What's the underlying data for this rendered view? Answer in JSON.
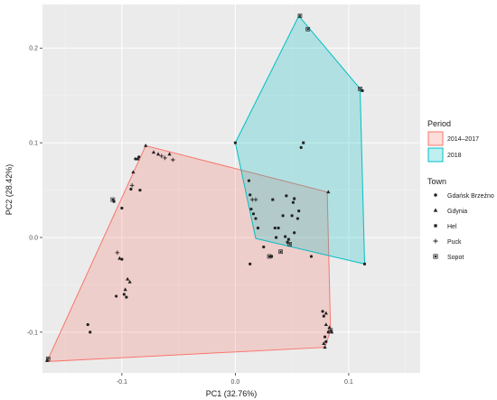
{
  "chart_data": {
    "type": "scatter",
    "title": "",
    "xlabel": "PC1 (32.76%)",
    "ylabel": "PC2 (28.42%)",
    "xlim": [
      -0.17,
      0.163
    ],
    "ylim": [
      -0.143,
      0.246
    ],
    "xticks": [
      -0.1,
      0.0,
      0.1
    ],
    "yticks": [
      -0.1,
      0.0,
      0.1,
      0.2
    ],
    "xtick_labels": [
      "-0.1",
      "0.0",
      "0.1"
    ],
    "ytick_labels": [
      "-0.1",
      "0.0",
      "0.1",
      "0.2"
    ],
    "grid": true,
    "panel_background": "#ebebeb",
    "legend_position": "right",
    "legends": {
      "period": {
        "title": "Period",
        "entries": [
          {
            "label": "2014–2017",
            "fill": "#f8766d",
            "border": "#f8766d"
          },
          {
            "label": "2018",
            "fill": "#00bfc4",
            "border": "#00bfc4"
          }
        ]
      },
      "town": {
        "title": "Town",
        "entries": [
          {
            "label": "Gdańsk Brzeźno",
            "shape": "circle"
          },
          {
            "label": "Gdynia",
            "shape": "triangle"
          },
          {
            "label": "Hel",
            "shape": "square"
          },
          {
            "label": "Puck",
            "shape": "plus"
          },
          {
            "label": "Sopot",
            "shape": "boxed-square"
          }
        ]
      }
    },
    "hulls": [
      {
        "name": "2014–2017",
        "color": "#f8766d",
        "vertices": [
          [
            -0.079,
            0.097
          ],
          [
            0.081,
            0.048
          ],
          [
            0.084,
            -0.098
          ],
          [
            0.079,
            -0.116
          ],
          [
            -0.166,
            -0.131
          ]
        ]
      },
      {
        "name": "2018",
        "color": "#00bfc4",
        "vertices": [
          [
            0.0,
            0.1
          ],
          [
            0.056,
            0.234
          ],
          [
            0.11,
            0.157
          ],
          [
            0.114,
            -0.028
          ],
          [
            0.018,
            -0.001
          ]
        ]
      }
    ],
    "points": [
      {
        "x": -0.166,
        "y": -0.13,
        "town": "Gdynia"
      },
      {
        "x": -0.165,
        "y": -0.128,
        "town": "Sopot"
      },
      {
        "x": -0.13,
        "y": -0.092,
        "town": "Gdańsk Brzeźno"
      },
      {
        "x": -0.128,
        "y": -0.1,
        "town": "Gdańsk Brzeźno"
      },
      {
        "x": -0.108,
        "y": 0.04,
        "town": "Sopot"
      },
      {
        "x": -0.107,
        "y": 0.038,
        "town": "Gdańsk Brzeźno"
      },
      {
        "x": -0.105,
        "y": -0.062,
        "town": "Gdańsk Brzeźno"
      },
      {
        "x": -0.104,
        "y": -0.016,
        "town": "Puck"
      },
      {
        "x": -0.102,
        "y": -0.022,
        "town": "Gdynia"
      },
      {
        "x": -0.1,
        "y": -0.023,
        "town": "Gdańsk Brzeźno"
      },
      {
        "x": -0.1,
        "y": 0.031,
        "town": "Gdańsk Brzeźno"
      },
      {
        "x": -0.098,
        "y": -0.06,
        "town": "Gdańsk Brzeźno"
      },
      {
        "x": -0.097,
        "y": -0.055,
        "town": "Gdynia"
      },
      {
        "x": -0.096,
        "y": -0.063,
        "town": "Gdańsk Brzeźno"
      },
      {
        "x": -0.095,
        "y": -0.044,
        "town": "Gdynia"
      },
      {
        "x": -0.093,
        "y": -0.047,
        "town": "Gdynia"
      },
      {
        "x": -0.092,
        "y": 0.051,
        "town": "Gdańsk Brzeźno"
      },
      {
        "x": -0.091,
        "y": 0.055,
        "town": "Puck"
      },
      {
        "x": -0.09,
        "y": 0.069,
        "town": "Gdynia"
      },
      {
        "x": -0.088,
        "y": 0.083,
        "town": "Gdańsk Brzeźno"
      },
      {
        "x": -0.086,
        "y": 0.083,
        "town": "Gdynia"
      },
      {
        "x": -0.085,
        "y": 0.085,
        "town": "Gdańsk Brzeźno"
      },
      {
        "x": -0.084,
        "y": 0.05,
        "town": "Gdańsk Brzeźno"
      },
      {
        "x": -0.079,
        "y": 0.097,
        "town": "Gdynia"
      },
      {
        "x": -0.072,
        "y": 0.09,
        "town": "Gdynia"
      },
      {
        "x": -0.068,
        "y": 0.088,
        "town": "Gdynia"
      },
      {
        "x": -0.065,
        "y": 0.086,
        "town": "Puck"
      },
      {
        "x": -0.062,
        "y": 0.084,
        "town": "Puck"
      },
      {
        "x": -0.058,
        "y": 0.088,
        "town": "Gdynia"
      },
      {
        "x": -0.055,
        "y": 0.082,
        "town": "Puck"
      },
      {
        "x": 0.0,
        "y": 0.1,
        "town": "Gdańsk Brzeźno"
      },
      {
        "x": 0.012,
        "y": 0.06,
        "town": "Gdańsk Brzeźno"
      },
      {
        "x": 0.013,
        "y": 0.045,
        "town": "Gdańsk Brzeźno"
      },
      {
        "x": 0.014,
        "y": 0.03,
        "town": "Gdańsk Brzeźno"
      },
      {
        "x": 0.015,
        "y": 0.04,
        "town": "Puck"
      },
      {
        "x": 0.016,
        "y": 0.025,
        "town": "Gdańsk Brzeźno"
      },
      {
        "x": 0.018,
        "y": 0.04,
        "town": "Puck"
      },
      {
        "x": 0.018,
        "y": 0.02,
        "town": "Gdańsk Brzeźno"
      },
      {
        "x": 0.013,
        "y": -0.028,
        "town": "Gdańsk Brzeźno"
      },
      {
        "x": 0.02,
        "y": 0.01,
        "town": "Gdańsk Brzeźno"
      },
      {
        "x": 0.025,
        "y": -0.01,
        "town": "Gdańsk Brzeźno"
      },
      {
        "x": 0.03,
        "y": -0.02,
        "town": "Sopot"
      },
      {
        "x": 0.032,
        "y": -0.02,
        "town": "Hel"
      },
      {
        "x": 0.033,
        "y": 0.04,
        "town": "Hel"
      },
      {
        "x": 0.035,
        "y": 0.01,
        "town": "Gdańsk Brzeźno"
      },
      {
        "x": 0.036,
        "y": 0.0,
        "town": "Gdańsk Brzeźno"
      },
      {
        "x": 0.038,
        "y": 0.01,
        "town": "Gdańsk Brzeźno"
      },
      {
        "x": 0.04,
        "y": -0.015,
        "town": "Sopot"
      },
      {
        "x": 0.042,
        "y": 0.023,
        "town": "Gdańsk Brzeźno"
      },
      {
        "x": 0.044,
        "y": 0.001,
        "town": "Gdańsk Brzeźno"
      },
      {
        "x": 0.045,
        "y": 0.044,
        "town": "Gdańsk Brzeźno"
      },
      {
        "x": 0.046,
        "y": -0.005,
        "town": "Hel"
      },
      {
        "x": 0.047,
        "y": -0.002,
        "town": "Hel"
      },
      {
        "x": 0.048,
        "y": -0.007,
        "town": "Sopot"
      },
      {
        "x": 0.05,
        "y": 0.023,
        "town": "Gdańsk Brzeźno"
      },
      {
        "x": 0.051,
        "y": 0.037,
        "town": "Gdańsk Brzeźno"
      },
      {
        "x": 0.052,
        "y": 0.041,
        "town": "Hel"
      },
      {
        "x": 0.052,
        "y": 0.005,
        "town": "Gdańsk Brzeźno"
      },
      {
        "x": 0.055,
        "y": 0.02,
        "town": "Gdańsk Brzeźno"
      },
      {
        "x": 0.056,
        "y": 0.028,
        "town": "Gdańsk Brzeźno"
      },
      {
        "x": 0.057,
        "y": 0.234,
        "town": "Sopot"
      },
      {
        "x": 0.064,
        "y": 0.22,
        "town": "Sopot"
      },
      {
        "x": 0.06,
        "y": 0.1,
        "town": "Hel"
      },
      {
        "x": 0.082,
        "y": 0.048,
        "town": "Gdynia"
      },
      {
        "x": 0.058,
        "y": 0.095,
        "town": "Gdańsk Brzeźno"
      },
      {
        "x": 0.067,
        "y": -0.02,
        "town": "Gdańsk Brzeźno"
      },
      {
        "x": 0.11,
        "y": 0.157,
        "town": "Sopot"
      },
      {
        "x": 0.112,
        "y": 0.155,
        "town": "Hel"
      },
      {
        "x": 0.114,
        "y": -0.028,
        "town": "Gdańsk Brzeźno"
      },
      {
        "x": 0.077,
        "y": -0.078,
        "town": "Gdańsk Brzeźno"
      },
      {
        "x": 0.078,
        "y": -0.083,
        "town": "Gdańsk Brzeźno"
      },
      {
        "x": 0.08,
        "y": -0.08,
        "town": "Gdynia"
      },
      {
        "x": 0.08,
        "y": -0.092,
        "town": "Gdynia"
      },
      {
        "x": 0.082,
        "y": -0.1,
        "town": "Gdańsk Brzeźno"
      },
      {
        "x": 0.083,
        "y": -0.095,
        "town": "Gdynia"
      },
      {
        "x": 0.079,
        "y": -0.105,
        "town": "Gdańsk Brzeźno"
      },
      {
        "x": 0.078,
        "y": -0.112,
        "town": "Gdynia"
      },
      {
        "x": 0.08,
        "y": -0.11,
        "town": "Gdańsk Brzeźno"
      },
      {
        "x": 0.079,
        "y": -0.116,
        "town": "Gdynia"
      },
      {
        "x": 0.085,
        "y": -0.1,
        "town": "Gdynia"
      },
      {
        "x": 0.084,
        "y": -0.098,
        "town": "Sopot"
      }
    ]
  }
}
